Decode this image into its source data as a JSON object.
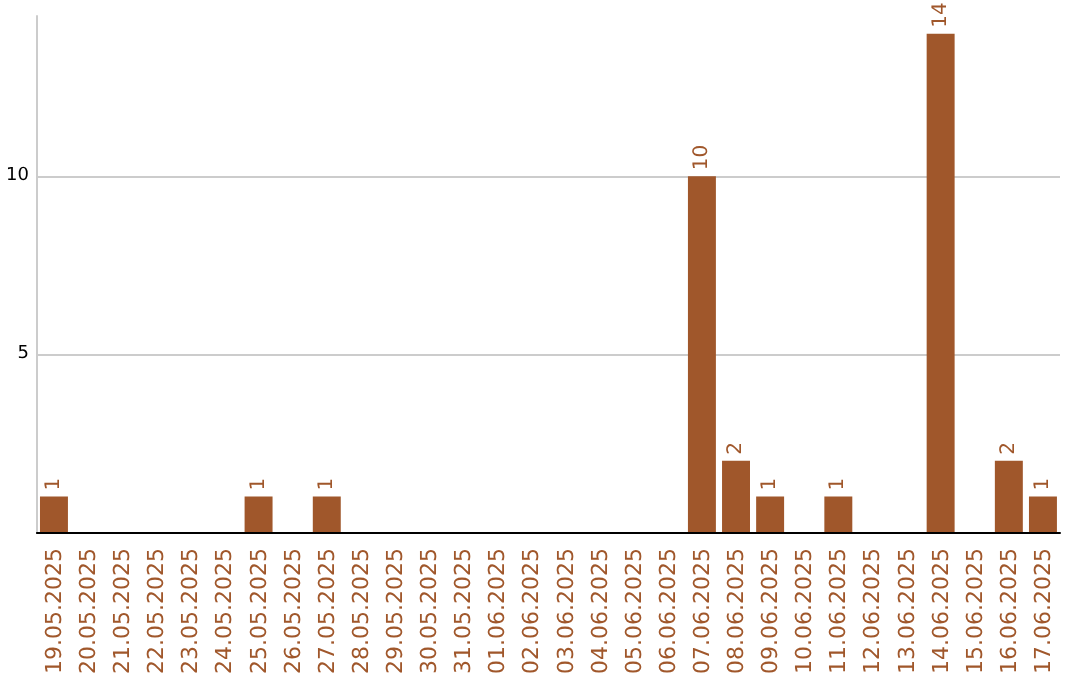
{
  "chart_data": {
    "type": "bar",
    "categories": [
      "19.05.2025",
      "20.05.2025",
      "21.05.2025",
      "22.05.2025",
      "23.05.2025",
      "24.05.2025",
      "25.05.2025",
      "26.05.2025",
      "27.05.2025",
      "28.05.2025",
      "29.05.2025",
      "30.05.2025",
      "31.05.2025",
      "01.06.2025",
      "02.06.2025",
      "03.06.2025",
      "04.06.2025",
      "05.06.2025",
      "06.06.2025",
      "07.06.2025",
      "08.06.2025",
      "09.06.2025",
      "10.06.2025",
      "11.06.2025",
      "12.06.2025",
      "13.06.2025",
      "14.06.2025",
      "15.06.2025",
      "16.06.2025",
      "17.06.2025"
    ],
    "values": [
      1,
      0,
      0,
      0,
      0,
      0,
      1,
      0,
      1,
      0,
      0,
      0,
      0,
      0,
      0,
      0,
      0,
      0,
      0,
      10,
      2,
      1,
      0,
      1,
      0,
      0,
      14,
      0,
      2,
      1
    ],
    "value_labels": [
      "1",
      null,
      null,
      null,
      null,
      null,
      "1",
      null,
      "1",
      null,
      null,
      null,
      null,
      null,
      null,
      null,
      null,
      null,
      null,
      "10",
      "2",
      "1",
      null,
      "1",
      null,
      null,
      "14",
      null,
      "2",
      "1"
    ],
    "color": "#a0572b",
    "ylim": [
      0,
      14.5
    ],
    "yticks": [
      5,
      10
    ],
    "grid": "y"
  }
}
